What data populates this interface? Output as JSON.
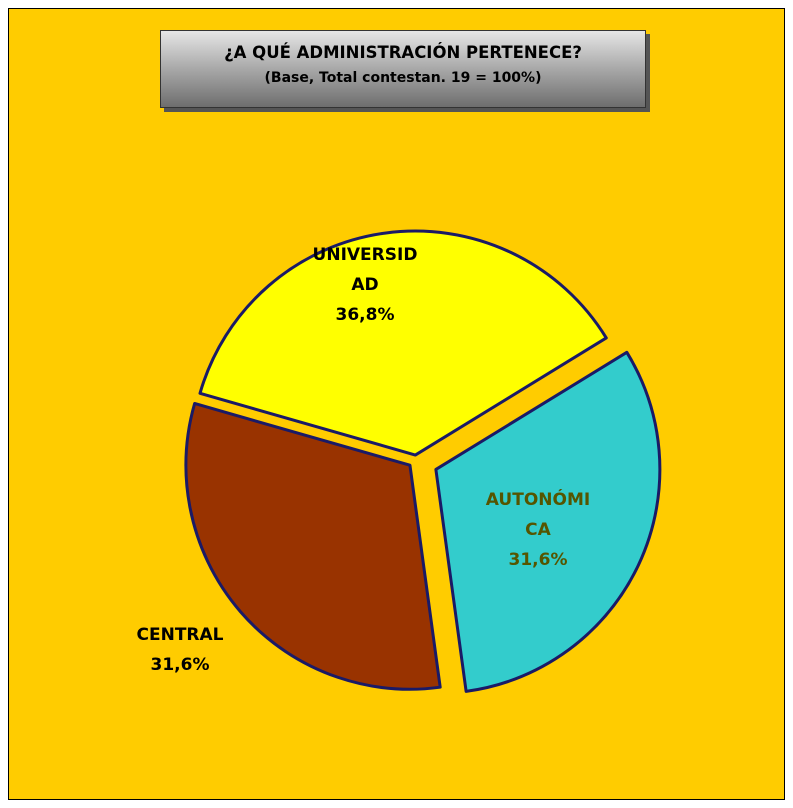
{
  "chart_data": {
    "type": "pie",
    "title": "¿A QUÉ ADMINISTRACIÓN PERTENECE?",
    "subtitle": "(Base, Total contestan. 19 = 100%)",
    "categories": [
      "UNIVERSIDAD",
      "AUTONÓMICA",
      "CENTRAL"
    ],
    "values": [
      36.8,
      31.6,
      31.6
    ],
    "value_labels": [
      "36,8%",
      "31,6%",
      "31,6%"
    ],
    "colors": [
      "#ffff00",
      "#33cccc",
      "#993300"
    ],
    "label_colors": [
      "#000000",
      "#555500",
      "#000000"
    ],
    "background": "#ffcc00"
  }
}
